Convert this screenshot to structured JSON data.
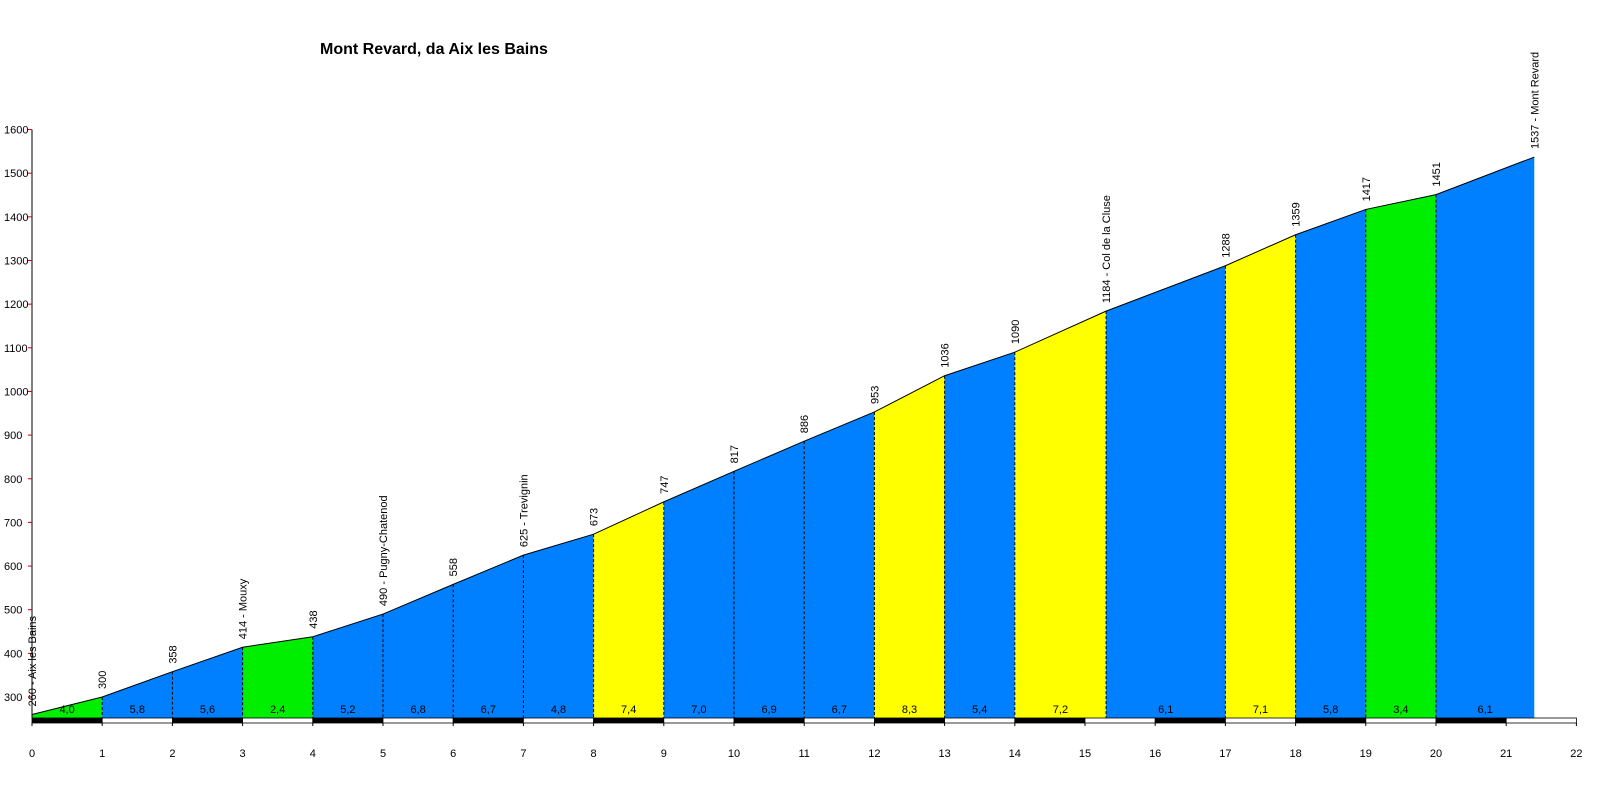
{
  "chart_data": {
    "type": "area",
    "title": "Mont Revard, da Aix les Bains",
    "xlabel": "",
    "ylabel": "",
    "xlim": [
      0,
      22
    ],
    "ylim": [
      300,
      1600
    ],
    "y_axis_visible_min": 240,
    "x_ticks": [
      0,
      1,
      2,
      3,
      4,
      5,
      6,
      7,
      8,
      9,
      10,
      11,
      12,
      13,
      14,
      15,
      16,
      17,
      18,
      19,
      20,
      21,
      22
    ],
    "y_ticks": [
      300,
      400,
      500,
      600,
      700,
      800,
      900,
      1000,
      1100,
      1200,
      1300,
      1400,
      1500,
      1600
    ],
    "profile": [
      {
        "x": 0,
        "y": 260
      },
      {
        "x": 1,
        "y": 300
      },
      {
        "x": 2,
        "y": 358
      },
      {
        "x": 3,
        "y": 414
      },
      {
        "x": 4,
        "y": 438
      },
      {
        "x": 5,
        "y": 490
      },
      {
        "x": 6,
        "y": 558
      },
      {
        "x": 7,
        "y": 625
      },
      {
        "x": 8,
        "y": 673
      },
      {
        "x": 9,
        "y": 747
      },
      {
        "x": 10,
        "y": 817
      },
      {
        "x": 11,
        "y": 886
      },
      {
        "x": 12,
        "y": 953
      },
      {
        "x": 13,
        "y": 1036
      },
      {
        "x": 14,
        "y": 1090
      },
      {
        "x": 15.3,
        "y": 1184
      },
      {
        "x": 17,
        "y": 1288
      },
      {
        "x": 18,
        "y": 1359
      },
      {
        "x": 19,
        "y": 1417
      },
      {
        "x": 20,
        "y": 1451
      },
      {
        "x": 21.4,
        "y": 1537
      }
    ],
    "annotations": [
      "260 - Aix les Bains",
      "300",
      "358",
      "414 - Mouxy",
      "438",
      "490 - Pugny-Chatenod",
      "558",
      "625 - Trevignin",
      "673",
      "747",
      "817",
      "886",
      "953",
      "1036",
      "1090",
      "1184 - Col de la Cluse",
      "1288",
      "1359",
      "1417",
      "1451",
      "1537 - Mont Revard"
    ],
    "segments": [
      {
        "grade": "4,0",
        "color": "#00ee00"
      },
      {
        "grade": "5,8",
        "color": "#0080ff"
      },
      {
        "grade": "5,6",
        "color": "#0080ff"
      },
      {
        "grade": "2,4",
        "color": "#00ee00"
      },
      {
        "grade": "5,2",
        "color": "#0080ff"
      },
      {
        "grade": "6,8",
        "color": "#0080ff"
      },
      {
        "grade": "6,7",
        "color": "#0080ff"
      },
      {
        "grade": "4,8",
        "color": "#0080ff"
      },
      {
        "grade": "7,4",
        "color": "#ffff00"
      },
      {
        "grade": "7,0",
        "color": "#0080ff"
      },
      {
        "grade": "6,9",
        "color": "#0080ff"
      },
      {
        "grade": "6,7",
        "color": "#0080ff"
      },
      {
        "grade": "8,3",
        "color": "#ffff00"
      },
      {
        "grade": "5,4",
        "color": "#0080ff"
      },
      {
        "grade": "7,2",
        "color": "#ffff00"
      },
      {
        "grade": "6,1",
        "color": "#0080ff"
      },
      {
        "grade": "7,1",
        "color": "#ffff00"
      },
      {
        "grade": "5,8",
        "color": "#0080ff"
      },
      {
        "grade": "3,4",
        "color": "#00ee00"
      },
      {
        "grade": "6,1",
        "color": "#0080ff"
      }
    ],
    "colors": {
      "axis": "#000000",
      "axis_tick": "#cc0000",
      "band_dark": "#000000",
      "band_light": "#ffffff"
    }
  }
}
